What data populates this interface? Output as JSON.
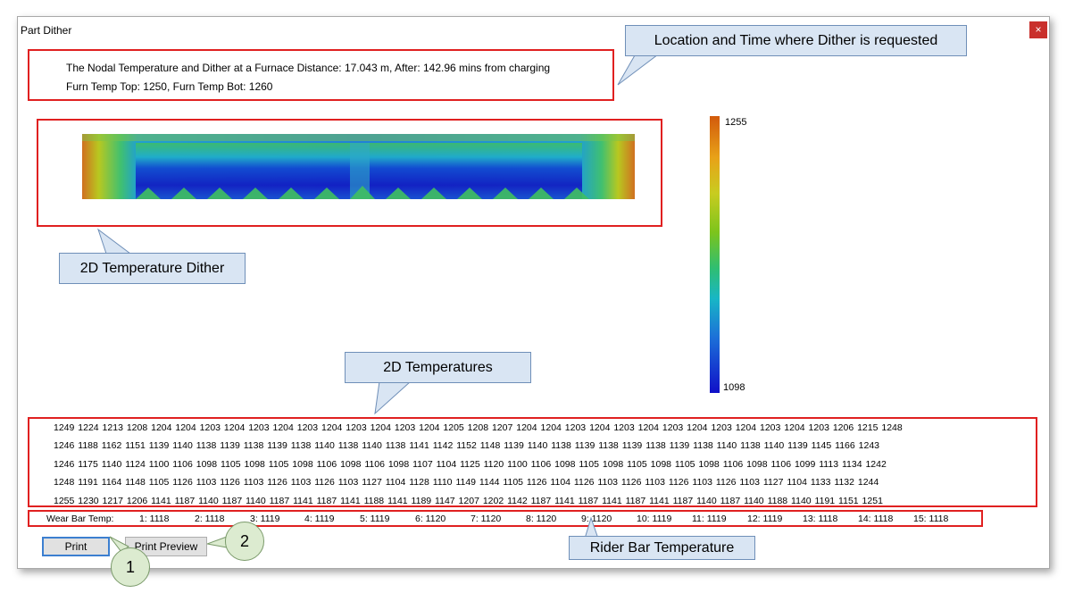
{
  "window": {
    "title": "Part Dither",
    "close_glyph": "×"
  },
  "info": {
    "line1": "The Nodal Temperature and Dither at a Furnace Distance: 17.043 m, After: 142.96 mins from charging",
    "line2": "Furn Temp Top: 1250,   Furn Temp Bot: 1260"
  },
  "color_scale": {
    "max": "1255",
    "min": "1098",
    "colors": [
      "#d25a0c",
      "#e8a218",
      "#c8cc20",
      "#7cc41c",
      "#2fbe72",
      "#18b6c6",
      "#1c70d8",
      "#1010c8"
    ]
  },
  "temperatures": [
    "1249 1224 1213 1208 1204 1204 1203 1204 1203 1204 1203 1204 1203 1204 1203 1204 1205 1208 1207 1204 1204 1203 1204 1203 1204 1203 1204 1203 1204 1203 1204 1203 1206 1215 1248",
    "1246 1188 1162 1151 1139 1140 1138 1139 1138 1139 1138 1140 1138 1140 1138 1141 1142 1152 1148 1139 1140 1138 1139 1138 1139 1138 1139 1138 1140 1138 1140 1139 1145 1166 1243",
    "1246 1175 1140 1124 1100 1106 1098 1105 1098 1105 1098 1106 1098 1106 1098 1107 1104 1125 1120 1100 1106 1098 1105 1098 1105 1098 1105 1098 1106 1098 1106 1099 1113 1134 1242",
    "1248 1191 1164 1148 1105 1126 1103 1126 1103 1126 1103 1126 1103 1127 1104 1128 1110 1149 1144 1105 1126 1104 1126 1103 1126 1103 1126 1103 1126 1103 1127 1104 1133 1132 1244",
    "1255 1230 1217 1206 1141 1187 1140 1187 1140 1187 1141 1187 1141 1188 1141 1189 1147 1207 1202 1142 1187 1141 1187 1141 1187 1141 1187 1140 1187 1140 1188 1140 1191 1151 1251"
  ],
  "wear_bar": {
    "label": "Wear Bar Temp:",
    "items": [
      "1: 1118",
      "2: 1118",
      "3: 1119",
      "4: 1119",
      "5: 1119",
      "6: 1120",
      "7: 1120",
      "8: 1120",
      "9: 1120",
      "10: 1119",
      "11: 1119",
      "12: 1119",
      "13: 1118",
      "14: 1118",
      "15: 1118"
    ]
  },
  "buttons": {
    "print": "Print",
    "print_preview": "Print Preview"
  },
  "callouts": {
    "location": "Location and Time where Dither is requested",
    "dither2d": "2D Temperature Dither",
    "temps2d": "2D Temperatures",
    "rider": "Rider Bar Temperature"
  },
  "markers": {
    "one": "1",
    "two": "2"
  }
}
